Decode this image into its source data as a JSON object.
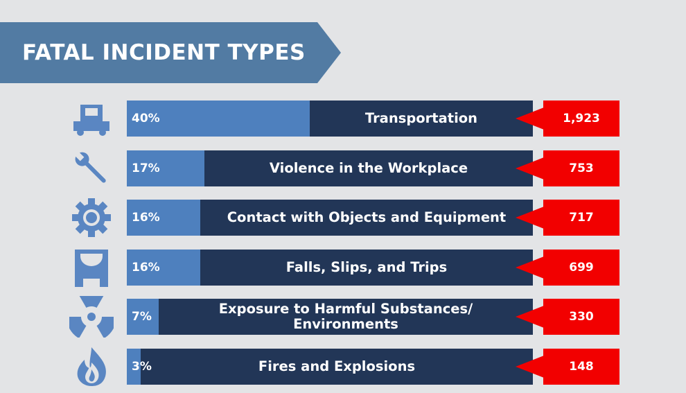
{
  "title": "FATAL INCIDENT TYPES",
  "colors": {
    "background": "#e3e4e6",
    "banner": "#527ba3",
    "bar_track": "#223657",
    "bar_fill": "#4e80be",
    "count_box": "#f20000",
    "icon": "#5a86c2"
  },
  "chart_data": {
    "type": "bar",
    "orientation": "horizontal",
    "title": "FATAL INCIDENT TYPES",
    "xlim": [
      0,
      100
    ],
    "categories": [
      "Transportation",
      "Violence in the Workplace",
      "Contact with Objects and Equipment",
      "Falls, Slips, and Trips",
      "Exposure to Harmful Substances/\nEnvironments",
      "Fires and Explosions"
    ],
    "percent_labels": [
      "40%",
      "17%",
      "16%",
      "16%",
      "7%",
      "3%"
    ],
    "percent_values": [
      40,
      17,
      16,
      16,
      7,
      3
    ],
    "count_labels": [
      "1,923",
      "753",
      "717",
      "699",
      "330",
      "148"
    ],
    "count_values": [
      1923,
      753,
      717,
      699,
      330,
      148
    ],
    "icons": [
      "truck-icon",
      "wrench-icon",
      "gear-icon",
      "fall-hazard-icon",
      "radiation-icon",
      "fire-icon"
    ]
  }
}
